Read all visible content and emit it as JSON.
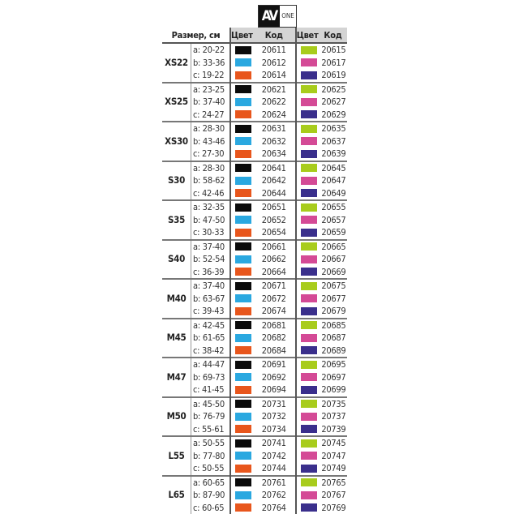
{
  "logo": {
    "mark": "AV",
    "text": "ONE"
  },
  "header": {
    "size": "Размер, см",
    "color1": "Цвет",
    "code1": "Код",
    "color2": "Цвет",
    "code2": "Код"
  },
  "colors": {
    "black": "#0a0a0a",
    "blue": "#2aa8e0",
    "orange": "#e8561c",
    "lime": "#a8cc1c",
    "pink": "#d44a96",
    "purple": "#3a2f8c"
  },
  "groups": [
    {
      "size": "XS22",
      "rows": [
        {
          "range": "a: 20-22",
          "c1": "black",
          "k1": "20611",
          "c2": "lime",
          "k2": "20615"
        },
        {
          "range": "b: 33-36",
          "c1": "blue",
          "k1": "20612",
          "c2": "pink",
          "k2": "20617"
        },
        {
          "range": "c: 19-22",
          "c1": "orange",
          "k1": "20614",
          "c2": "purple",
          "k2": "20619"
        }
      ]
    },
    {
      "size": "XS25",
      "rows": [
        {
          "range": "a: 23-25",
          "c1": "black",
          "k1": "20621",
          "c2": "lime",
          "k2": "20625"
        },
        {
          "range": "b: 37-40",
          "c1": "blue",
          "k1": "20622",
          "c2": "pink",
          "k2": "20627"
        },
        {
          "range": "c: 24-27",
          "c1": "orange",
          "k1": "20624",
          "c2": "purple",
          "k2": "20629"
        }
      ]
    },
    {
      "size": "XS30",
      "rows": [
        {
          "range": "a: 28-30",
          "c1": "black",
          "k1": "20631",
          "c2": "lime",
          "k2": "20635"
        },
        {
          "range": "b: 43-46",
          "c1": "blue",
          "k1": "20632",
          "c2": "pink",
          "k2": "20637"
        },
        {
          "range": "c: 27-30",
          "c1": "orange",
          "k1": "20634",
          "c2": "purple",
          "k2": "20639"
        }
      ]
    },
    {
      "size": "S30",
      "rows": [
        {
          "range": "a: 28-30",
          "c1": "black",
          "k1": "20641",
          "c2": "lime",
          "k2": "20645"
        },
        {
          "range": "b: 58-62",
          "c1": "blue",
          "k1": "20642",
          "c2": "pink",
          "k2": "20647"
        },
        {
          "range": "c: 42-46",
          "c1": "orange",
          "k1": "20644",
          "c2": "purple",
          "k2": "20649"
        }
      ]
    },
    {
      "size": "S35",
      "rows": [
        {
          "range": "a: 32-35",
          "c1": "black",
          "k1": "20651",
          "c2": "lime",
          "k2": "20655"
        },
        {
          "range": "b: 47-50",
          "c1": "blue",
          "k1": "20652",
          "c2": "pink",
          "k2": "20657"
        },
        {
          "range": "c: 30-33",
          "c1": "orange",
          "k1": "20654",
          "c2": "purple",
          "k2": "20659"
        }
      ]
    },
    {
      "size": "S40",
      "rows": [
        {
          "range": "a: 37-40",
          "c1": "black",
          "k1": "20661",
          "c2": "lime",
          "k2": "20665"
        },
        {
          "range": "b: 52-54",
          "c1": "blue",
          "k1": "20662",
          "c2": "pink",
          "k2": "20667"
        },
        {
          "range": "c: 36-39",
          "c1": "orange",
          "k1": "20664",
          "c2": "purple",
          "k2": "20669"
        }
      ]
    },
    {
      "size": "M40",
      "rows": [
        {
          "range": "a: 37-40",
          "c1": "black",
          "k1": "20671",
          "c2": "lime",
          "k2": "20675"
        },
        {
          "range": "b: 63-67",
          "c1": "blue",
          "k1": "20672",
          "c2": "pink",
          "k2": "20677"
        },
        {
          "range": "c: 39-43",
          "c1": "orange",
          "k1": "20674",
          "c2": "purple",
          "k2": "20679"
        }
      ]
    },
    {
      "size": "M45",
      "rows": [
        {
          "range": "a: 42-45",
          "c1": "black",
          "k1": "20681",
          "c2": "lime",
          "k2": "20685"
        },
        {
          "range": "b: 61-65",
          "c1": "blue",
          "k1": "20682",
          "c2": "pink",
          "k2": "20687"
        },
        {
          "range": "c: 38-42",
          "c1": "orange",
          "k1": "20684",
          "c2": "purple",
          "k2": "20689"
        }
      ]
    },
    {
      "size": "M47",
      "rows": [
        {
          "range": "a: 44-47",
          "c1": "black",
          "k1": "20691",
          "c2": "lime",
          "k2": "20695"
        },
        {
          "range": "b: 69-73",
          "c1": "blue",
          "k1": "20692",
          "c2": "pink",
          "k2": "20697"
        },
        {
          "range": "c: 41-45",
          "c1": "orange",
          "k1": "20694",
          "c2": "purple",
          "k2": "20699"
        }
      ]
    },
    {
      "size": "M50",
      "rows": [
        {
          "range": "a: 45-50",
          "c1": "black",
          "k1": "20731",
          "c2": "lime",
          "k2": "20735"
        },
        {
          "range": "b: 76-79",
          "c1": "blue",
          "k1": "20732",
          "c2": "pink",
          "k2": "20737"
        },
        {
          "range": "c: 55-61",
          "c1": "orange",
          "k1": "20734",
          "c2": "purple",
          "k2": "20739"
        }
      ]
    },
    {
      "size": "L55",
      "rows": [
        {
          "range": "a: 50-55",
          "c1": "black",
          "k1": "20741",
          "c2": "lime",
          "k2": "20745"
        },
        {
          "range": "b: 77-80",
          "c1": "blue",
          "k1": "20742",
          "c2": "pink",
          "k2": "20747"
        },
        {
          "range": "c: 50-55",
          "c1": "orange",
          "k1": "20744",
          "c2": "purple",
          "k2": "20749"
        }
      ]
    },
    {
      "size": "L65",
      "rows": [
        {
          "range": "a: 60-65",
          "c1": "black",
          "k1": "20761",
          "c2": "lime",
          "k2": "20765"
        },
        {
          "range": "b: 87-90",
          "c1": "blue",
          "k1": "20762",
          "c2": "pink",
          "k2": "20767"
        },
        {
          "range": "c: 60-65",
          "c1": "orange",
          "k1": "20764",
          "c2": "purple",
          "k2": "20769"
        }
      ]
    }
  ]
}
